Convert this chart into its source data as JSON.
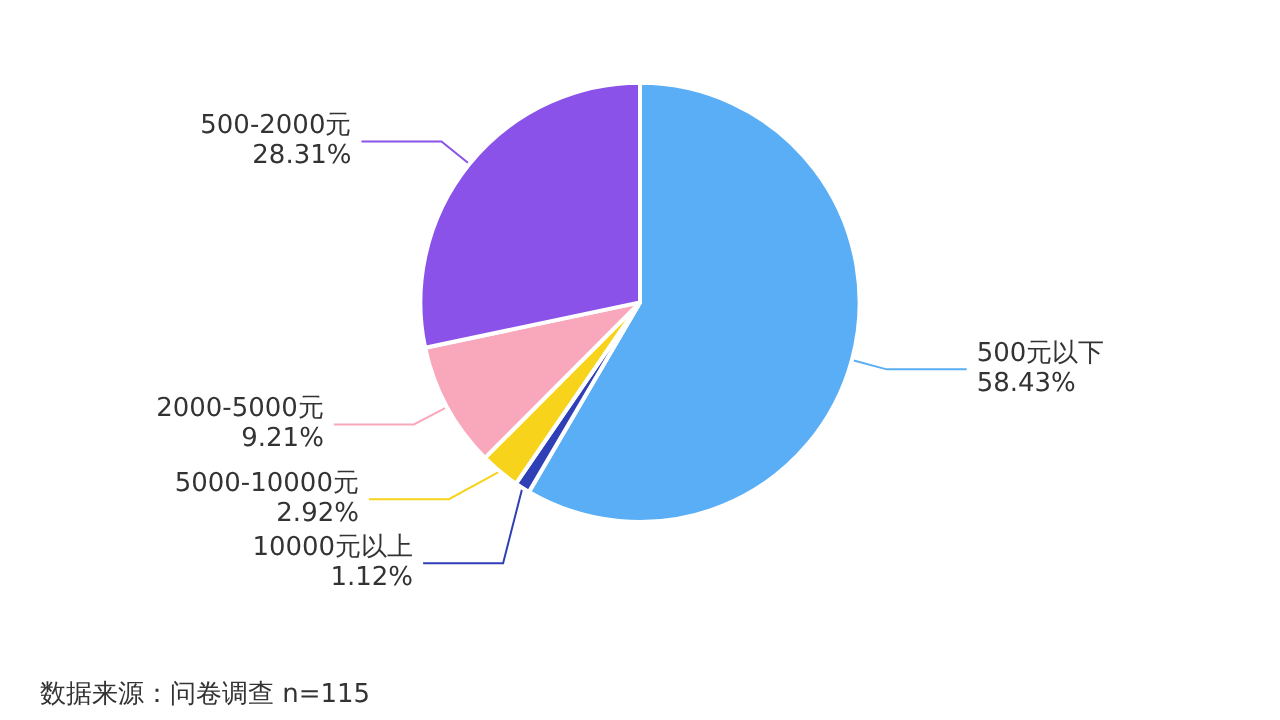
{
  "chart_data": {
    "type": "pie",
    "categories": [
      "500元以下",
      "10000元以上",
      "5000-10000元",
      "2000-5000元",
      "500-2000元"
    ],
    "values": [
      58.43,
      1.12,
      2.92,
      9.21,
      28.31
    ],
    "value_labels": [
      "58.43%",
      "1.12%",
      "2.92%",
      "9.21%",
      "28.31%"
    ],
    "colors": [
      "#5aaef5",
      "#2f3fb5",
      "#f7d31c",
      "#f9a8bc",
      "#8a52e8"
    ],
    "annotations": [
      "数据来源：问卷调查 n=115"
    ],
    "legend": false
  }
}
